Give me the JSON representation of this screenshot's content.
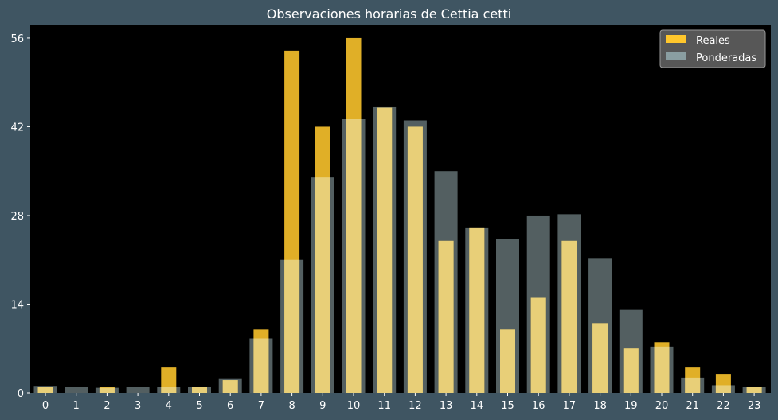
{
  "chart_data": {
    "type": "bar",
    "title": "Observaciones horarias de Cettia cetti",
    "xlabel": "",
    "ylabel": "",
    "categories": [
      "0",
      "1",
      "2",
      "3",
      "4",
      "5",
      "6",
      "7",
      "8",
      "9",
      "10",
      "11",
      "12",
      "13",
      "14",
      "15",
      "16",
      "17",
      "18",
      "19",
      "20",
      "21",
      "22",
      "23"
    ],
    "series": [
      {
        "name": "Reales",
        "color": "#ffc72c",
        "values": [
          1,
          0,
          1,
          0,
          4,
          1,
          2,
          10,
          54,
          42,
          56,
          45,
          42,
          24,
          26,
          10,
          15,
          24,
          11,
          7,
          8,
          4,
          3,
          1
        ]
      },
      {
        "name": "Ponderadas",
        "color": "#8a9ea1",
        "opacity": 0.75,
        "values": [
          1.1,
          1.0,
          0.8,
          0.9,
          1.0,
          1.0,
          2.3,
          8.6,
          21,
          34,
          43.2,
          45.2,
          43,
          35,
          26,
          24.3,
          28,
          28.2,
          21.3,
          13.1,
          7.3,
          2.4,
          1.2,
          1.0
        ]
      }
    ],
    "ylim": [
      0,
      58
    ],
    "yticks": [
      0,
      14,
      28,
      42,
      56
    ],
    "grid": false,
    "legend_position": "top-right",
    "plot_background": "#000000",
    "figure_background": "#3f5562"
  }
}
